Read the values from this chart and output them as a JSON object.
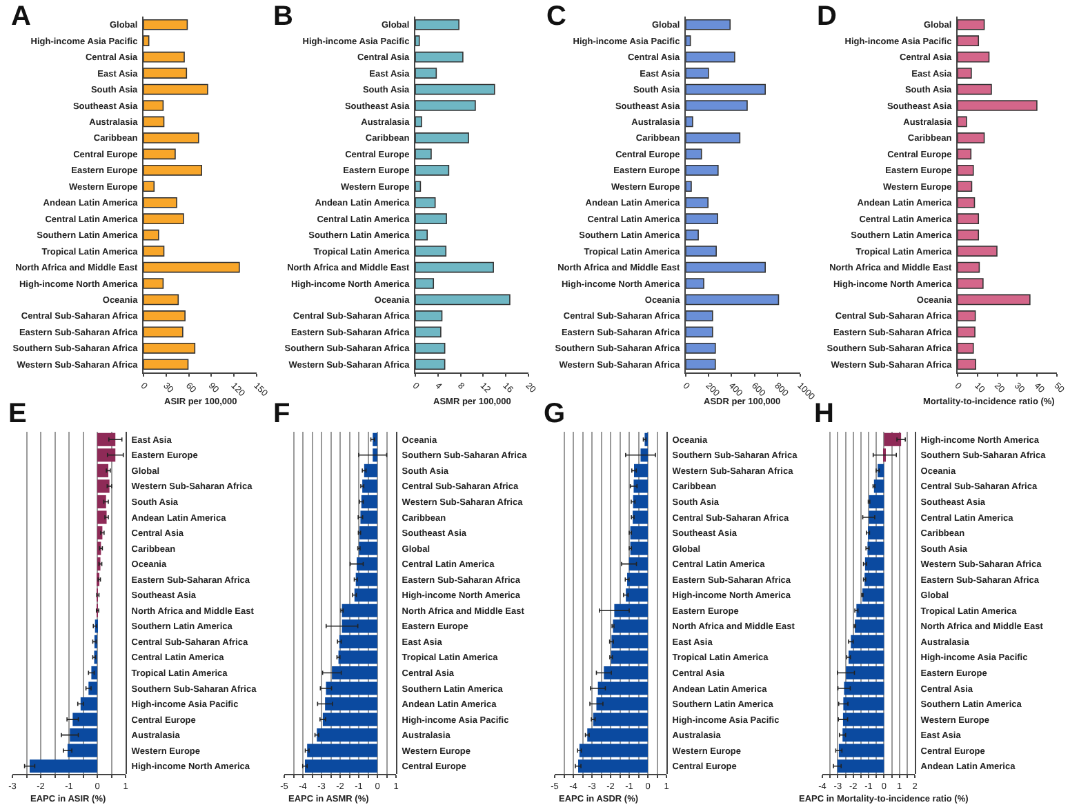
{
  "chart_data": [
    {
      "type": "bar",
      "title": "A",
      "orientation": "horizontal",
      "xlabel": "ASIR per 100,000",
      "grid": false,
      "xlim": [
        0,
        150
      ],
      "xticks": [
        0,
        30,
        60,
        90,
        120,
        150
      ],
      "categories": [
        "Global",
        "High-income Asia Pacific",
        "Central Asia",
        "East Asia",
        "South Asia",
        "Southeast Asia",
        "Australasia",
        "Caribbean",
        "Central Europe",
        "Eastern Europe",
        "Western Europe",
        "Andean Latin America",
        "Central Latin America",
        "Southern Latin America",
        "Tropical Latin America",
        "North Africa and Middle East",
        "High-income North America",
        "Oceania",
        "Central Sub-Saharan Africa",
        "Eastern Sub-Saharan Africa",
        "Southern Sub-Saharan Africa",
        "Western Sub-Saharan Africa"
      ],
      "values": [
        58,
        7,
        54,
        57,
        85,
        26,
        27,
        73,
        42,
        77,
        14,
        44,
        53,
        20,
        27,
        127,
        26,
        46,
        55,
        52,
        68,
        59
      ],
      "color": "#f8a62a"
    },
    {
      "type": "bar",
      "title": "B",
      "orientation": "horizontal",
      "xlabel": "ASMR per 100,000",
      "grid": false,
      "xlim": [
        0,
        20
      ],
      "xticks": [
        0,
        4,
        8,
        12,
        16,
        20
      ],
      "categories": [
        "Global",
        "High-income Asia Pacific",
        "Central Asia",
        "East Asia",
        "South Asia",
        "Southeast Asia",
        "Australasia",
        "Caribbean",
        "Central Europe",
        "Eastern Europe",
        "Western Europe",
        "Andean Latin America",
        "Central Latin America",
        "Southern Latin America",
        "Tropical Latin America",
        "North Africa and Middle East",
        "High-income North America",
        "Oceania",
        "Central Sub-Saharan Africa",
        "Eastern Sub-Saharan Africa",
        "Southern Sub-Saharan Africa",
        "Western Sub-Saharan Africa"
      ],
      "values": [
        7.7,
        0.7,
        8.4,
        3.7,
        14.0,
        10.6,
        1.1,
        9.4,
        2.8,
        5.9,
        0.9,
        3.5,
        5.5,
        2.1,
        5.4,
        13.8,
        3.2,
        16.7,
        4.7,
        4.5,
        5.2,
        5.2
      ],
      "color": "#6fb7c4"
    },
    {
      "type": "bar",
      "title": "C",
      "orientation": "horizontal",
      "xlabel": "ASDR per 100,000",
      "grid": false,
      "xlim": [
        0,
        1000
      ],
      "xticks": [
        0,
        200,
        400,
        600,
        800,
        1000
      ],
      "categories": [
        "Global",
        "High-income Asia Pacific",
        "Central Asia",
        "East Asia",
        "South Asia",
        "Southeast Asia",
        "Australasia",
        "Caribbean",
        "Central Europe",
        "Eastern Europe",
        "Western Europe",
        "Andean Latin America",
        "Central Latin America",
        "Southern Latin America",
        "Tropical Latin America",
        "North Africa and Middle East",
        "High-income North America",
        "Oceania",
        "Central Sub-Saharan Africa",
        "Eastern Sub-Saharan Africa",
        "Southern Sub-Saharan Africa",
        "Western Sub-Saharan Africa"
      ],
      "values": [
        387,
        40,
        427,
        198,
        694,
        536,
        60,
        472,
        137,
        282,
        48,
        194,
        278,
        109,
        266,
        694,
        157,
        810,
        234,
        234,
        258,
        258
      ],
      "color": "#6a8fd8"
    },
    {
      "type": "bar",
      "title": "D",
      "orientation": "horizontal",
      "xlabel": "Mortality-to-incidence ratio (%)",
      "grid": false,
      "xlim": [
        0,
        50
      ],
      "xticks": [
        0,
        10,
        20,
        30,
        40,
        50
      ],
      "categories": [
        "Global",
        "High-income Asia Pacific",
        "Central Asia",
        "East Asia",
        "South Asia",
        "Southeast Asia",
        "Australasia",
        "Caribbean",
        "Central Europe",
        "Eastern Europe",
        "Western Europe",
        "Andean Latin America",
        "Central Latin America",
        "Southern Latin America",
        "Tropical Latin America",
        "North Africa and Middle East",
        "High-income North America",
        "Oceania",
        "Central Sub-Saharan Africa",
        "Eastern Sub-Saharan Africa",
        "Southern Sub-Saharan Africa",
        "Western Sub-Saharan Africa"
      ],
      "values": [
        13.4,
        10.5,
        15.8,
        6.9,
        17.0,
        39.9,
        4.5,
        13.4,
        6.7,
        7.9,
        7.1,
        8.5,
        10.5,
        10.5,
        19.8,
        10.9,
        12.8,
        36.4,
        8.9,
        8.7,
        7.9,
        9.1
      ],
      "color": "#d4668a"
    },
    {
      "type": "bar",
      "title": "E",
      "orientation": "horizontal",
      "xlabel": "EAPC in ASIR (%)",
      "grid": "x",
      "xlim": [
        -3,
        1
      ],
      "xticks": [
        -3,
        {
          "value": -2.5,
          "label": null
        },
        -2,
        {
          "value": -1.5,
          "label": null
        },
        -1,
        {
          "value": -0.5,
          "label": null
        },
        0,
        {
          "value": 0.5,
          "label": null
        },
        1
      ],
      "categories": [
        "East Asia",
        "Eastern Europe",
        "Global",
        "Western Sub-Saharan Africa",
        "South Asia",
        "Andean Latin America",
        "Central Asia",
        "Caribbean",
        "Oceania",
        "Eastern Sub-Saharan Africa",
        "Southeast Asia",
        "North Africa and Middle East",
        "Southern Latin America",
        "Central Sub-Saharan Africa",
        "Central Latin America",
        "Tropical Latin America",
        "Southern Sub-Saharan Africa",
        "High-income Asia Pacific",
        "Central Europe",
        "Australasia",
        "Western Europe",
        "High-income North America"
      ],
      "values": [
        0.64,
        0.64,
        0.39,
        0.43,
        0.31,
        0.33,
        0.18,
        0.13,
        0.11,
        0.07,
        0.02,
        0.01,
        -0.08,
        -0.1,
        -0.11,
        -0.21,
        -0.31,
        -0.59,
        -0.87,
        -0.97,
        -1.05,
        -2.39
      ],
      "errors": [
        0.23,
        0.28,
        0.07,
        0.08,
        0.08,
        0.06,
        0.06,
        0.05,
        0.05,
        0.04,
        0.04,
        0.04,
        0.06,
        0.06,
        0.05,
        0.1,
        0.09,
        0.1,
        0.2,
        0.3,
        0.15,
        0.18
      ],
      "colors": [
        "#8e2a57",
        "#8e2a57",
        "#8e2a57",
        "#8e2a57",
        "#8e2a57",
        "#8e2a57",
        "#8e2a57",
        "#8e2a57",
        "#8e2a57",
        "#8e2a57",
        "#8e2a57",
        "#8e2a57",
        "#0b4aa0",
        "#0b4aa0",
        "#0b4aa0",
        "#0b4aa0",
        "#0b4aa0",
        "#0b4aa0",
        "#0b4aa0",
        "#0b4aa0",
        "#0b4aa0",
        "#0b4aa0"
      ]
    },
    {
      "type": "bar",
      "title": "F",
      "orientation": "horizontal",
      "xlabel": "EAPC in ASMR (%)",
      "grid": "x",
      "xlim": [
        -5,
        1
      ],
      "xticks": [
        -5,
        {
          "value": -4.5,
          "label": null
        },
        -4,
        {
          "value": -3.5,
          "label": null
        },
        -3,
        {
          "value": -2.5,
          "label": null
        },
        -2,
        {
          "value": -1.5,
          "label": null
        },
        -1,
        {
          "value": -0.5,
          "label": null
        },
        0,
        {
          "value": 0.5,
          "label": null
        },
        1
      ],
      "categories": [
        "Oceania",
        "Southern Sub-Saharan Africa",
        "South Asia",
        "Central Sub-Saharan Africa",
        "Western Sub-Saharan Africa",
        "Caribbean",
        "Southeast Asia",
        "Global",
        "Central Latin America",
        "Eastern Sub-Saharan Africa",
        "High-income North America",
        "North Africa and Middle East",
        "Eastern Europe",
        "East Asia",
        "Tropical Latin America",
        "Central Asia",
        "Southern Latin America",
        "Andean Latin America",
        "High-income Asia Pacific",
        "Australasia",
        "Western Europe",
        "Central Europe"
      ],
      "values": [
        -0.25,
        -0.25,
        -0.71,
        -0.81,
        -0.86,
        -0.91,
        -0.96,
        -0.99,
        -1.11,
        -1.16,
        -1.23,
        -1.9,
        -1.9,
        -2.04,
        -2.09,
        -2.44,
        -2.76,
        -2.81,
        -2.93,
        -3.25,
        -3.77,
        -3.89
      ],
      "errors": [
        0.1,
        0.75,
        0.1,
        0.08,
        0.1,
        0.12,
        0.06,
        0.06,
        0.35,
        0.08,
        0.1,
        0.06,
        0.85,
        0.1,
        0.08,
        0.5,
        0.3,
        0.4,
        0.15,
        0.1,
        0.1,
        0.12
      ],
      "color": "#0b4aa0"
    },
    {
      "type": "bar",
      "title": "G",
      "orientation": "horizontal",
      "xlabel": "EAPC in ASDR (%)",
      "grid": "x",
      "xlim": [
        -5,
        1
      ],
      "xticks": [
        -5,
        {
          "value": -4.5,
          "label": null
        },
        -4,
        {
          "value": -3.5,
          "label": null
        },
        -3,
        {
          "value": -2.5,
          "label": null
        },
        -2,
        {
          "value": -1.5,
          "label": null
        },
        -1,
        {
          "value": -0.5,
          "label": null
        },
        0,
        {
          "value": 0.5,
          "label": null
        },
        1
      ],
      "categories": [
        "Oceania",
        "Southern Sub-Saharan Africa",
        "Western Sub-Saharan Africa",
        "Caribbean",
        "South Asia",
        "Central Sub-Saharan Africa",
        "Southeast Asia",
        "Global",
        "Central Latin America",
        "Eastern Sub-Saharan Africa",
        "High-income North America",
        "Eastern Europe",
        "North Africa and Middle East",
        "East Asia",
        "Tropical Latin America",
        "Central Asia",
        "Andean Latin America",
        "Southern Latin America",
        "High-income Asia Pacific",
        "Australasia",
        "Western Europe",
        "Central Europe"
      ],
      "values": [
        -0.17,
        -0.39,
        -0.74,
        -0.76,
        -0.79,
        -0.81,
        -0.94,
        -0.94,
        -1.01,
        -1.11,
        -1.18,
        -1.8,
        -1.87,
        -1.95,
        -1.97,
        -2.36,
        -2.68,
        -2.76,
        -2.93,
        -3.25,
        -3.67,
        -3.74
      ],
      "errors": [
        0.07,
        0.8,
        0.12,
        0.18,
        0.1,
        0.07,
        0.06,
        0.06,
        0.4,
        0.1,
        0.12,
        0.8,
        0.05,
        0.1,
        0.07,
        0.4,
        0.4,
        0.35,
        0.1,
        0.1,
        0.1,
        0.15
      ],
      "color": "#0b4aa0"
    },
    {
      "type": "bar",
      "title": "H",
      "orientation": "horizontal",
      "xlabel": "EAPC in Mortality-to-incidence ratio (%)",
      "grid": "x",
      "xlim": [
        -4,
        2
      ],
      "xticks": [
        -4,
        {
          "value": -3.5,
          "label": null
        },
        -3,
        {
          "value": -2.5,
          "label": null
        },
        -2,
        {
          "value": -1.5,
          "label": null
        },
        -1,
        {
          "value": -0.5,
          "label": null
        },
        0,
        {
          "value": 0.5,
          "label": null
        },
        1,
        {
          "value": 1.5,
          "label": null
        },
        2
      ],
      "categories": [
        "High-income North America",
        "Southern Sub-Saharan Africa",
        "Oceania",
        "Central Sub-Saharan Africa",
        "Southeast Asia",
        "Central Latin America",
        "Caribbean",
        "South Asia",
        "Western Sub-Saharan Africa",
        "Eastern Sub-Saharan Africa",
        "Global",
        "Tropical Latin America",
        "North Africa and Middle East",
        "Australasia",
        "High-income Asia Pacific",
        "Eastern Europe",
        "Central Asia",
        "Southern Latin America",
        "Western Europe",
        "East Asia",
        "Central Europe",
        "Andean Latin America"
      ],
      "values": [
        1.11,
        0.05,
        -0.41,
        -0.65,
        -0.97,
        -0.99,
        -1.04,
        -1.07,
        -1.23,
        -1.26,
        -1.4,
        -1.79,
        -1.89,
        -2.15,
        -2.3,
        -2.47,
        -2.59,
        -2.64,
        -2.66,
        -2.69,
        -2.93,
        -3.03
      ],
      "errors": [
        0.27,
        0.75,
        0.1,
        0.06,
        0.05,
        0.39,
        0.1,
        0.1,
        0.1,
        0.07,
        0.04,
        0.1,
        0.05,
        0.15,
        0.12,
        0.55,
        0.4,
        0.3,
        0.3,
        0.2,
        0.2,
        0.25
      ],
      "colors": [
        "#8e2a57",
        "#8e2a57",
        "#0b4aa0",
        "#0b4aa0",
        "#0b4aa0",
        "#0b4aa0",
        "#0b4aa0",
        "#0b4aa0",
        "#0b4aa0",
        "#0b4aa0",
        "#0b4aa0",
        "#0b4aa0",
        "#0b4aa0",
        "#0b4aa0",
        "#0b4aa0",
        "#0b4aa0",
        "#0b4aa0",
        "#0b4aa0",
        "#0b4aa0",
        "#0b4aa0",
        "#0b4aa0",
        "#0b4aa0"
      ]
    }
  ]
}
